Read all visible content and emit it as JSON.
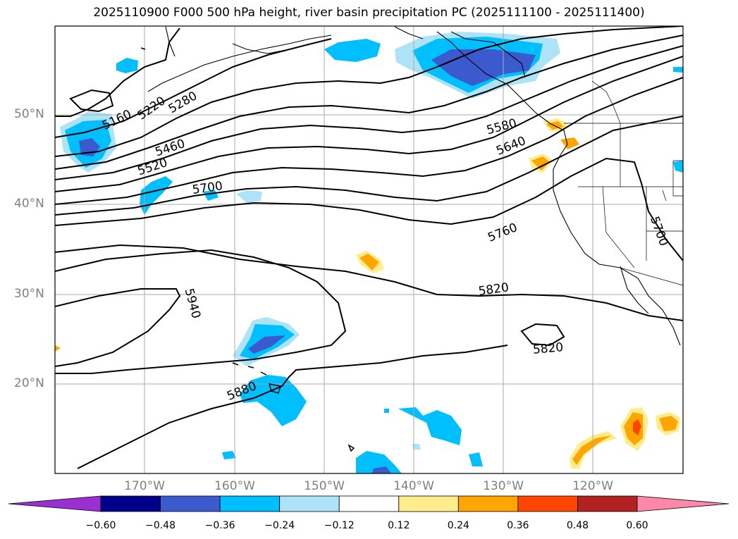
{
  "title": "2025110900 F000 500 hPa height, river basin precipitation PC (2025111100 - 2025111400)",
  "map": {
    "lat_labels": [
      "50°N",
      "40°N",
      "30°N",
      "20°N"
    ],
    "lon_labels": [
      "170°W",
      "160°W",
      "150°W",
      "140°W",
      "130°W",
      "120°W"
    ],
    "contour_labels": [
      "5160",
      "5220",
      "5280",
      "5460",
      "5520",
      "5580",
      "5640",
      "5700",
      "5700",
      "5760",
      "5820",
      "5820",
      "5880",
      "5940"
    ]
  },
  "colorbar": {
    "ticks": [
      "−0.60",
      "−0.48",
      "−0.36",
      "−0.24",
      "−0.12",
      "0.12",
      "0.24",
      "0.36",
      "0.48",
      "0.60"
    ],
    "colors": [
      "#9b30d0",
      "#00008b",
      "#3a5acd",
      "#00bfff",
      "#ade3f7",
      "#ffffff",
      "#ffec8b",
      "#ffa500",
      "#ff4500",
      "#b22222",
      "#ff88aa"
    ]
  }
}
